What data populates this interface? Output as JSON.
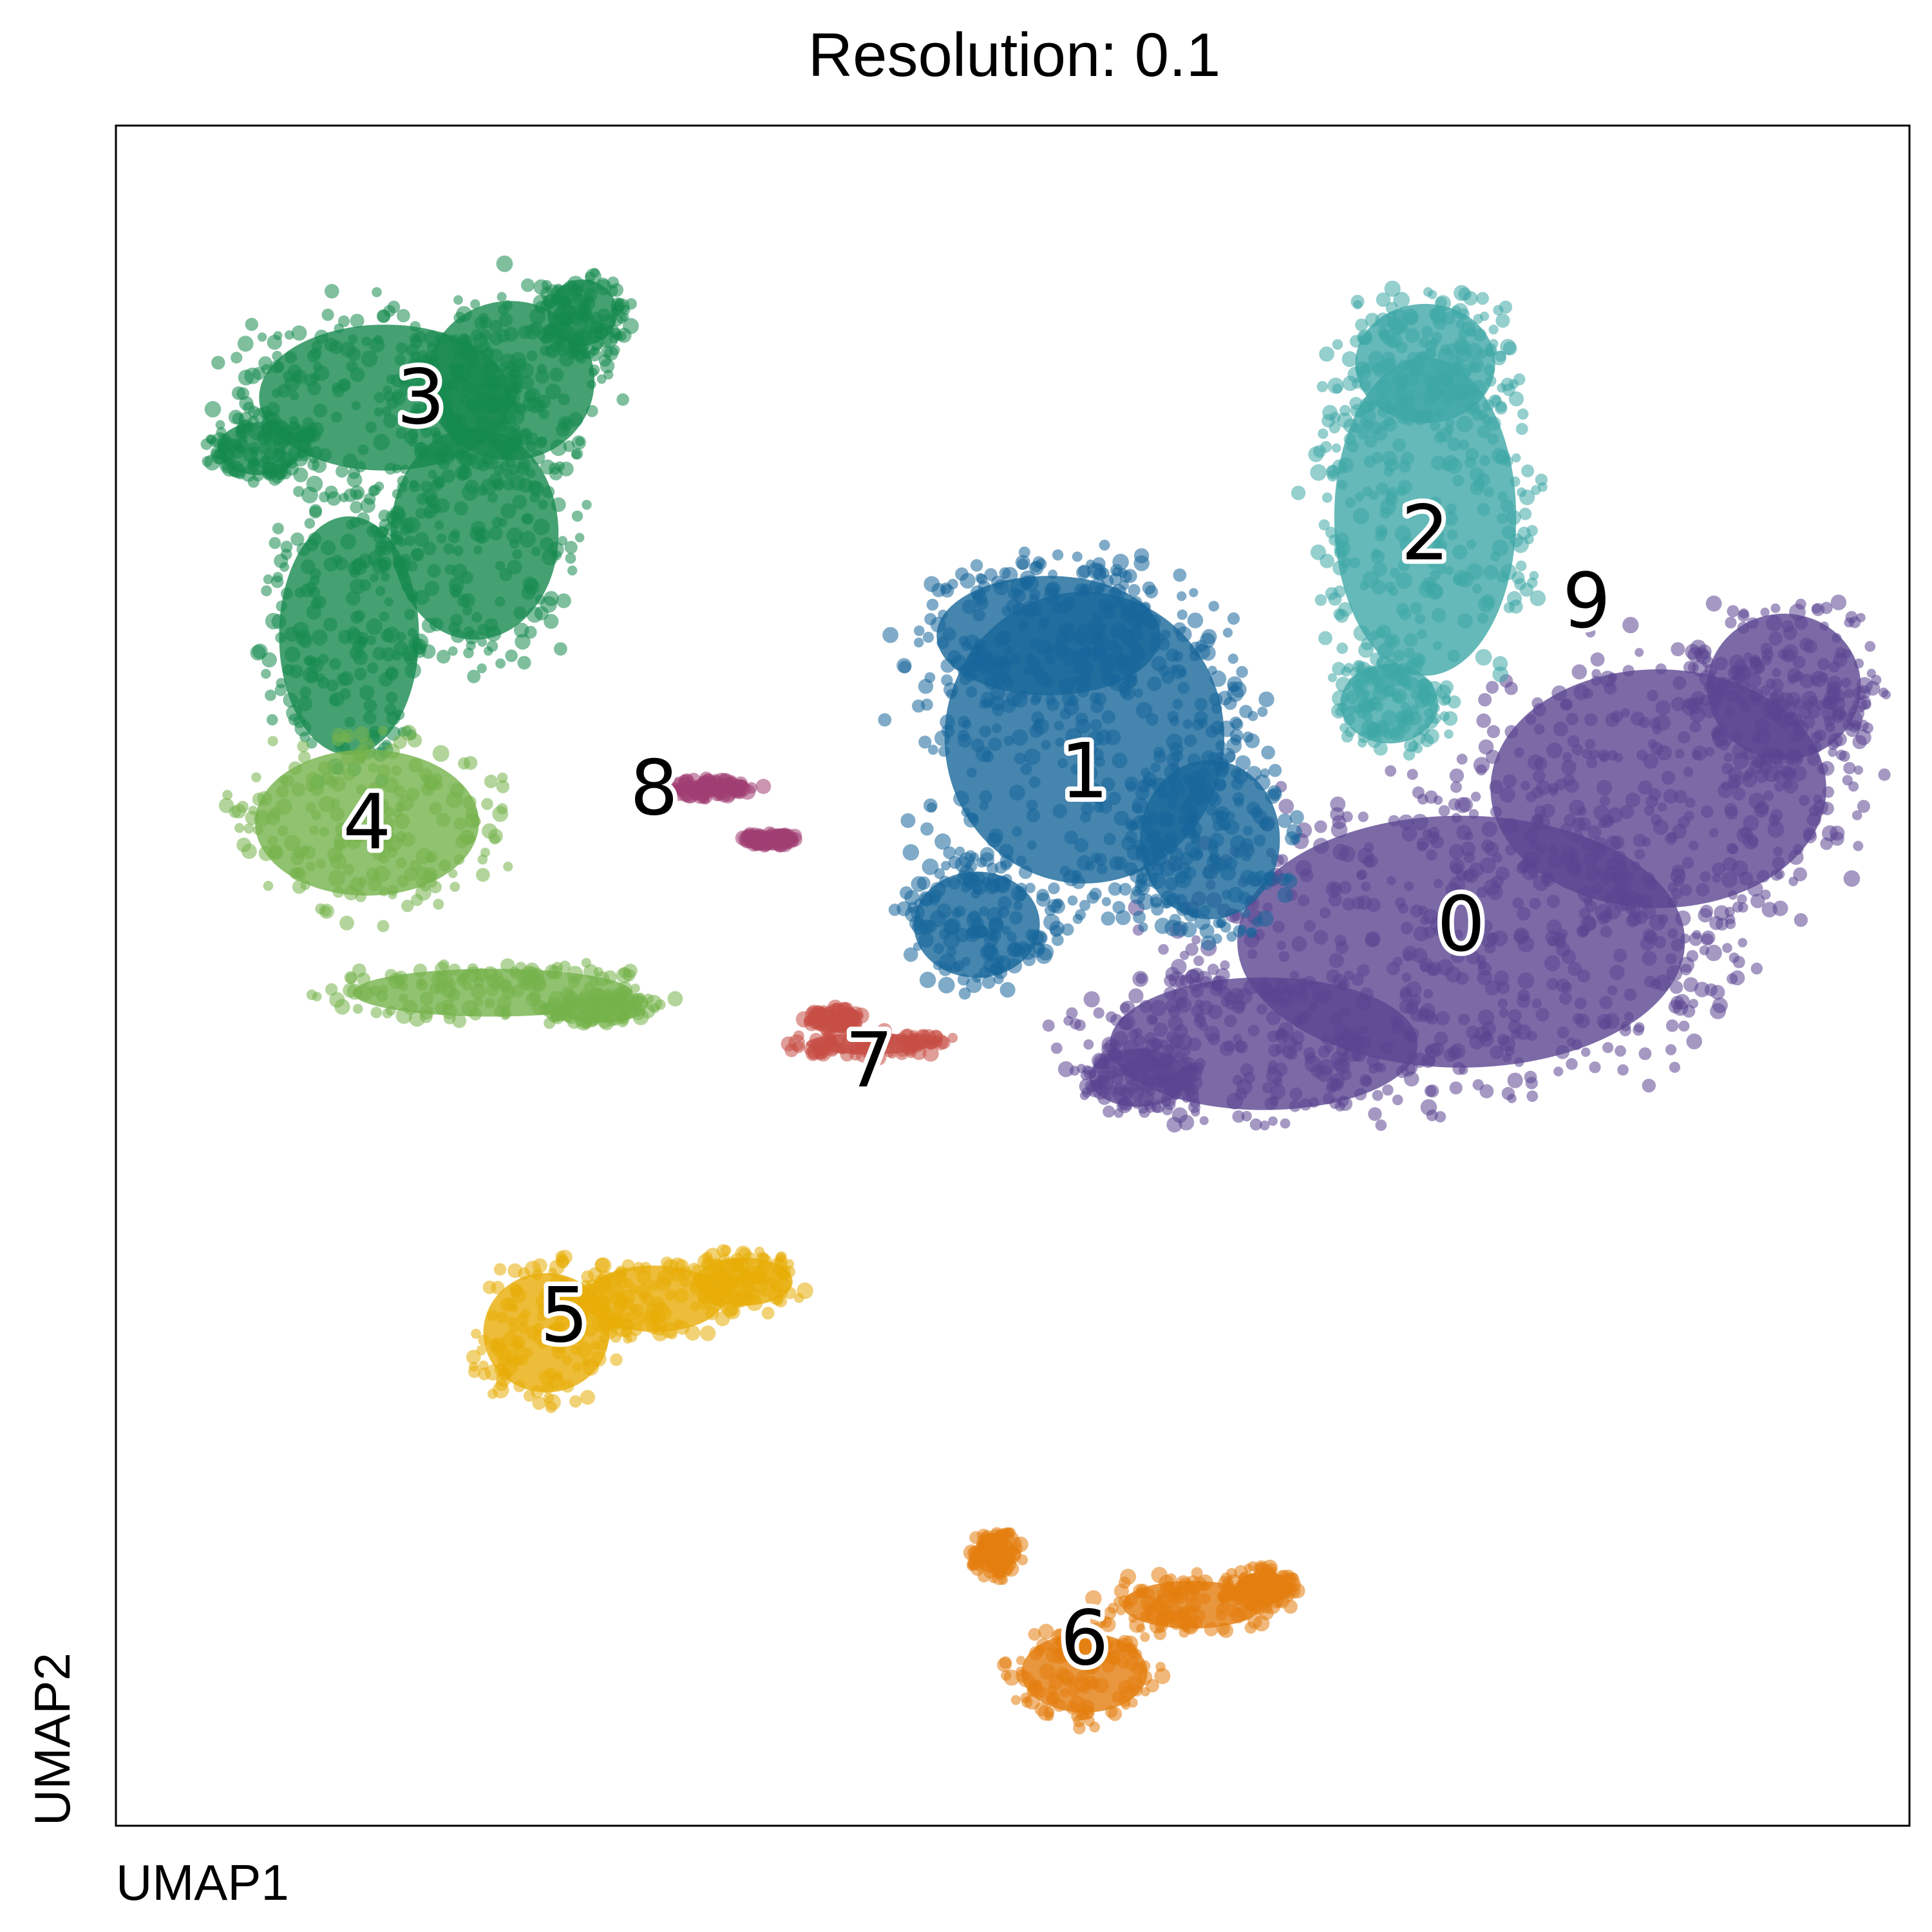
{
  "chart_data": {
    "type": "scatter",
    "title": "Resolution: 0.1",
    "xlabel": "UMAP1",
    "ylabel": "UMAP2",
    "xlim": [
      0,
      10
    ],
    "ylim": [
      0,
      10
    ],
    "grid": false,
    "legend": "on data",
    "series": [
      {
        "name": "0",
        "color": "#5b4591",
        "label_at": [
          7.5,
          5.3
        ],
        "blobs": [
          [
            7.5,
            5.2,
            1.6,
            0.95
          ],
          [
            8.6,
            6.1,
            1.2,
            0.9
          ],
          [
            9.3,
            6.7,
            0.55,
            0.55
          ],
          [
            6.4,
            4.6,
            1.1,
            0.5
          ],
          [
            5.7,
            4.4,
            0.35,
            0.22
          ]
        ]
      },
      {
        "name": "1",
        "color": "#17669a",
        "label_at": [
          5.4,
          6.2
        ],
        "blobs": [
          [
            5.4,
            6.4,
            1.0,
            1.1
          ],
          [
            5.2,
            7.0,
            0.8,
            0.45
          ],
          [
            4.8,
            5.3,
            0.45,
            0.4
          ],
          [
            6.1,
            5.8,
            0.5,
            0.6
          ]
        ]
      },
      {
        "name": "2",
        "color": "#3ea8a6",
        "label_at": [
          7.3,
          7.6
        ],
        "blobs": [
          [
            7.3,
            7.7,
            0.65,
            1.2
          ],
          [
            7.3,
            8.6,
            0.5,
            0.45
          ],
          [
            7.1,
            6.6,
            0.35,
            0.3
          ]
        ]
      },
      {
        "name": "3",
        "color": "#168a4e",
        "label_at": [
          1.7,
          8.4
        ],
        "blobs": [
          [
            1.5,
            8.4,
            0.9,
            0.55
          ],
          [
            2.2,
            8.5,
            0.6,
            0.6
          ],
          [
            1.3,
            7.0,
            0.5,
            0.9
          ],
          [
            2.0,
            7.6,
            0.6,
            0.8
          ],
          [
            2.6,
            8.9,
            0.25,
            0.25
          ],
          [
            0.8,
            8.1,
            0.3,
            0.2
          ]
        ]
      },
      {
        "name": "4",
        "color": "#74b34b",
        "label_at": [
          1.4,
          5.9
        ],
        "blobs": [
          [
            1.4,
            5.9,
            0.8,
            0.55
          ],
          [
            2.1,
            4.9,
            1.0,
            0.18
          ],
          [
            2.7,
            4.8,
            0.3,
            0.1
          ]
        ]
      },
      {
        "name": "5",
        "color": "#e8ad08",
        "label_at": [
          2.5,
          3.0
        ],
        "blobs": [
          [
            2.4,
            2.9,
            0.45,
            0.45
          ],
          [
            3.0,
            3.1,
            0.5,
            0.25
          ],
          [
            3.5,
            3.2,
            0.35,
            0.18
          ]
        ]
      },
      {
        "name": "6",
        "color": "#e37d0e",
        "label_at": [
          5.4,
          1.1
        ],
        "blobs": [
          [
            5.4,
            0.9,
            0.45,
            0.3
          ],
          [
            6.0,
            1.3,
            0.5,
            0.18
          ],
          [
            6.4,
            1.4,
            0.2,
            0.12
          ],
          [
            4.9,
            1.6,
            0.15,
            0.15
          ]
        ]
      },
      {
        "name": "7",
        "color": "#c64e45",
        "label_at": [
          4.2,
          4.5
        ],
        "blobs": [
          [
            4.2,
            4.6,
            0.45,
            0.08
          ],
          [
            4.0,
            4.75,
            0.15,
            0.06
          ]
        ]
      },
      {
        "name": "8",
        "color": "#a03e72",
        "label_at": [
          3.0,
          6.1
        ],
        "blobs": [
          [
            3.3,
            6.1,
            0.25,
            0.06
          ],
          [
            3.65,
            5.8,
            0.15,
            0.04
          ]
        ]
      },
      {
        "name": "9",
        "color": "#5b4591",
        "label_at": [
          8.2,
          7.2
        ],
        "blobs": []
      }
    ]
  }
}
